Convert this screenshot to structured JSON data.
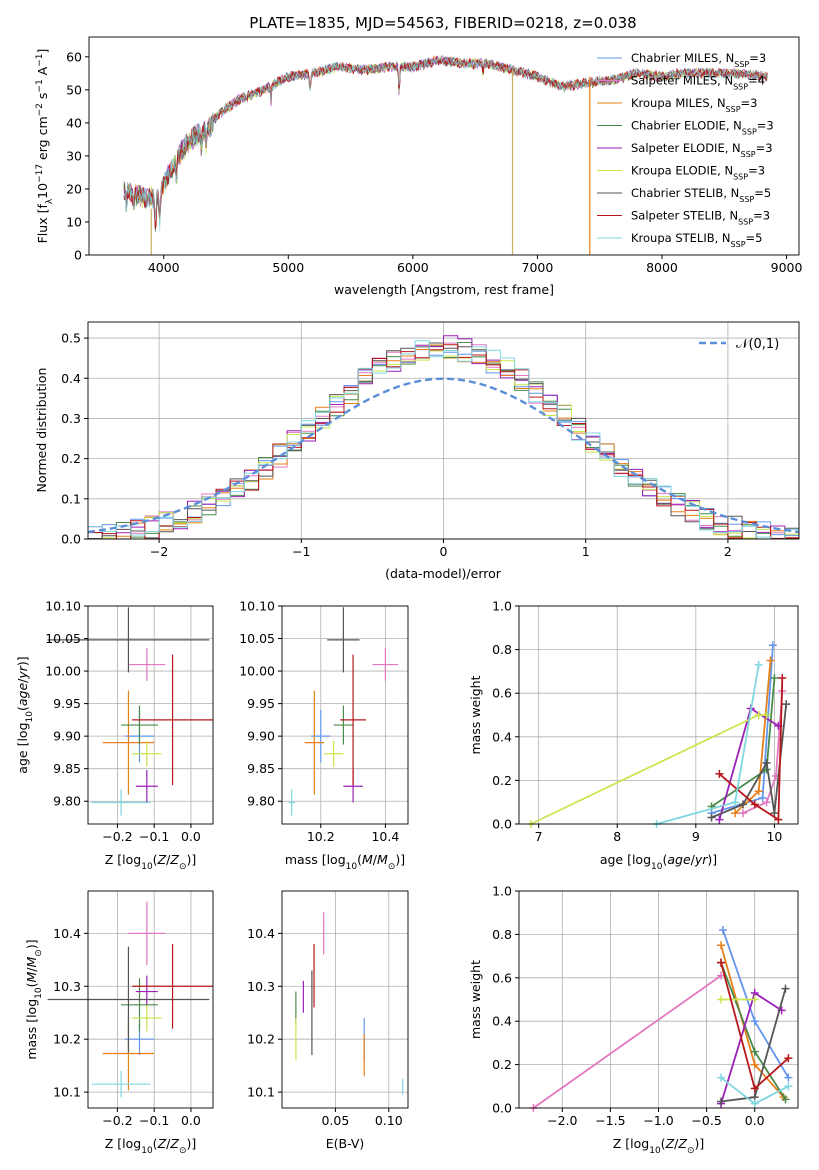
{
  "title": "PLATE=1835, MJD=54563, FIBERID=0218, z=0.038",
  "colors": {
    "Chabrier MILES": "#6495ed",
    "Salpeter MILES": "#e377c2",
    "Kroupa MILES": "#e6801a",
    "Chabrier ELODIE": "#4a8a4a",
    "Salpeter ELODIE": "#9b1fb8",
    "Kroupa ELODIE": "#c9e64f",
    "Chabrier STELIB": "#555555",
    "Salpeter STELIB": "#b8161b",
    "Kroupa STELIB": "#7fd6e0"
  },
  "chart_data": [
    {
      "type": "line",
      "panel": "spectrum",
      "xlabel": "wavelength [Angstrom, rest frame]",
      "ylabel": "Flux [f_λ10^-17 erg cm^-2 s^-1 A^-1]",
      "xlim": [
        3400,
        9100
      ],
      "ylim": [
        0,
        66
      ],
      "xticks": [
        4000,
        5000,
        6000,
        7000,
        8000,
        9000
      ],
      "yticks": [
        0,
        10,
        20,
        30,
        40,
        50,
        60
      ],
      "legend": "top-right",
      "continuum": {
        "x": [
          3680,
          3750,
          3850,
          3950,
          4050,
          4150,
          4250,
          4350,
          4450,
          4600,
          4800,
          5000,
          5200,
          5400,
          5600,
          5800,
          6000,
          6200,
          6400,
          6600,
          6800,
          7000,
          7200,
          7400,
          7600,
          7800,
          8000,
          8200,
          8400,
          8600,
          8850
        ],
        "y": [
          20,
          19,
          17,
          18,
          25,
          32,
          36,
          38,
          43,
          47,
          50,
          54,
          55,
          57,
          56,
          57,
          57,
          59,
          58,
          58,
          56,
          54,
          51,
          52,
          53,
          55,
          54,
          55,
          55,
          55,
          54
        ]
      },
      "series": [
        {
          "name": "Chabrier MILES",
          "nssp": 3
        },
        {
          "name": "Salpeter MILES",
          "nssp": 4
        },
        {
          "name": "Kroupa MILES",
          "nssp": 3
        },
        {
          "name": "Chabrier ELODIE",
          "nssp": 3
        },
        {
          "name": "Salpeter ELODIE",
          "nssp": 3
        },
        {
          "name": "Kroupa ELODIE",
          "nssp": 3
        },
        {
          "name": "Chabrier STELIB",
          "nssp": 5
        },
        {
          "name": "Salpeter STELIB",
          "nssp": 3
        },
        {
          "name": "Kroupa STELIB",
          "nssp": 5
        }
      ],
      "spikes": [
        {
          "x": 3900,
          "y": [
            0,
            14
          ],
          "color": "#c9b060"
        },
        {
          "x": 6800,
          "y": [
            0,
            56
          ],
          "color": "#c9b060"
        },
        {
          "x": 7420,
          "y": [
            0,
            54
          ],
          "color": "#e6801a"
        }
      ]
    },
    {
      "type": "line",
      "panel": "residual-histogram",
      "xlabel": "(data-model)/error",
      "ylabel": "Normed distribution",
      "xlim": [
        -2.5,
        2.5
      ],
      "ylim": [
        0,
        0.54
      ],
      "xticks": [
        -2,
        -1,
        0,
        1,
        2
      ],
      "yticks": [
        0.0,
        0.1,
        0.2,
        0.3,
        0.4,
        0.5
      ],
      "grid": true,
      "legend": "top-right",
      "reference_label": "𝒩(0,1)",
      "reference_color": "#5b8fd9",
      "bin_width": 0.1
    },
    {
      "type": "scatter",
      "panel": "age-vs-Z",
      "xlabel": "Z [log10(Z/Z⊙)]",
      "ylabel": "age [log10(age/yr)]",
      "xlim": [
        -0.28,
        0.06
      ],
      "ylim": [
        9.765,
        10.1
      ],
      "xticks": [
        -0.2,
        -0.1,
        0.0
      ],
      "yticks": [
        9.8,
        9.85,
        9.9,
        9.95,
        10.0,
        10.05,
        10.1
      ],
      "points": [
        {
          "name": "Chabrier MILES",
          "x": -0.14,
          "xerr": 0.04,
          "y": 9.9,
          "yerr": 0.04
        },
        {
          "name": "Salpeter MILES",
          "x": -0.12,
          "xerr": 0.05,
          "y": 10.01,
          "yerr": 0.025
        },
        {
          "name": "Kroupa MILES",
          "x": -0.17,
          "xerr": 0.07,
          "y": 9.89,
          "yerr": 0.08
        },
        {
          "name": "Chabrier ELODIE",
          "x": -0.14,
          "xerr": 0.05,
          "y": 9.917,
          "yerr": 0.03
        },
        {
          "name": "Salpeter ELODIE",
          "x": -0.12,
          "xerr": 0.03,
          "y": 9.823,
          "yerr": 0.025
        },
        {
          "name": "Kroupa ELODIE",
          "x": -0.12,
          "xerr": 0.04,
          "y": 9.873,
          "yerr": 0.02
        },
        {
          "name": "Chabrier STELIB",
          "x": -0.17,
          "xerr": 0.22,
          "y": 10.048,
          "yerr": 0.05
        },
        {
          "name": "Salpeter STELIB",
          "x": -0.05,
          "xerr": 0.11,
          "y": 9.925,
          "yerr": 0.1
        },
        {
          "name": "Kroupa STELIB",
          "x": -0.19,
          "xerr": 0.08,
          "y": 9.798,
          "yerr": 0.02
        }
      ]
    },
    {
      "type": "scatter",
      "panel": "age-vs-mass",
      "xlabel": "mass [log10(M/M⊙)]",
      "ylabel": "",
      "xlim": [
        10.08,
        10.47
      ],
      "ylim": [
        9.765,
        10.1
      ],
      "xticks": [
        10.2,
        10.4
      ],
      "yticks": [
        9.8,
        9.85,
        9.9,
        9.95,
        10.0,
        10.05,
        10.1
      ],
      "points": [
        {
          "name": "Chabrier MILES",
          "x": 10.2,
          "xerr": 0.03,
          "y": 9.9,
          "yerr": 0.04
        },
        {
          "name": "Salpeter MILES",
          "x": 10.4,
          "xerr": 0.04,
          "y": 10.01,
          "yerr": 0.025
        },
        {
          "name": "Kroupa MILES",
          "x": 10.18,
          "xerr": 0.03,
          "y": 9.89,
          "yerr": 0.08
        },
        {
          "name": "Chabrier ELODIE",
          "x": 10.27,
          "xerr": 0.03,
          "y": 9.917,
          "yerr": 0.03
        },
        {
          "name": "Salpeter ELODIE",
          "x": 10.3,
          "xerr": 0.03,
          "y": 9.823,
          "yerr": 0.025
        },
        {
          "name": "Kroupa ELODIE",
          "x": 10.24,
          "xerr": 0.03,
          "y": 9.873,
          "yerr": 0.02
        },
        {
          "name": "Chabrier STELIB",
          "x": 10.27,
          "xerr": 0.05,
          "y": 10.048,
          "yerr": 0.05
        },
        {
          "name": "Salpeter STELIB",
          "x": 10.3,
          "xerr": 0.04,
          "y": 9.925,
          "yerr": 0.1
        },
        {
          "name": "Kroupa STELIB",
          "x": 10.11,
          "xerr": 0.01,
          "y": 9.798,
          "yerr": 0.02
        }
      ]
    },
    {
      "type": "line",
      "panel": "mass-weight-vs-age",
      "xlabel": "age [log10(age/yr)]",
      "ylabel": "mass weight",
      "xlim": [
        6.75,
        10.3
      ],
      "ylim": [
        0,
        1.0
      ],
      "xticks": [
        7,
        8,
        9,
        10
      ],
      "yticks": [
        0.0,
        0.2,
        0.4,
        0.6,
        0.8,
        1.0
      ],
      "grid": true,
      "series": [
        {
          "name": "Chabrier MILES",
          "x": [
            9.2,
            9.85,
            9.98
          ],
          "y": [
            0.05,
            0.12,
            0.82
          ]
        },
        {
          "name": "Salpeter MILES",
          "x": [
            9.6,
            9.9,
            10.02,
            10.1
          ],
          "y": [
            0.05,
            0.1,
            0.22,
            0.61
          ]
        },
        {
          "name": "Kroupa MILES",
          "x": [
            9.5,
            9.8,
            9.95
          ],
          "y": [
            0.05,
            0.15,
            0.75
          ]
        },
        {
          "name": "Chabrier ELODIE",
          "x": [
            9.2,
            9.9,
            10.0
          ],
          "y": [
            0.08,
            0.25,
            0.67
          ]
        },
        {
          "name": "Salpeter ELODIE",
          "x": [
            9.3,
            9.7,
            10.05
          ],
          "y": [
            0.02,
            0.53,
            0.45
          ]
        },
        {
          "name": "Kroupa ELODIE",
          "x": [
            6.9,
            9.8,
            9.9
          ],
          "y": [
            0.0,
            0.5,
            0.5
          ]
        },
        {
          "name": "Chabrier STELIB",
          "x": [
            9.2,
            9.6,
            9.9,
            10.0,
            10.15
          ],
          "y": [
            0.03,
            0.09,
            0.28,
            0.05,
            0.55
          ]
        },
        {
          "name": "Salpeter STELIB",
          "x": [
            9.3,
            9.75,
            10.05,
            10.1
          ],
          "y": [
            0.23,
            0.09,
            0.02,
            0.67
          ]
        },
        {
          "name": "Kroupa STELIB",
          "x": [
            8.5,
            9.5,
            9.8
          ],
          "y": [
            0.0,
            0.1,
            0.73
          ]
        }
      ]
    },
    {
      "type": "scatter",
      "panel": "mass-vs-Z",
      "xlabel": "Z [log10(Z/Z⊙)]",
      "ylabel": "mass [log10(M/M⊙)]",
      "xlim": [
        -0.28,
        0.06
      ],
      "ylim": [
        10.07,
        10.48
      ],
      "xticks": [
        -0.2,
        -0.1,
        0.0
      ],
      "yticks": [
        10.1,
        10.2,
        10.3,
        10.4
      ],
      "points": [
        {
          "name": "Chabrier MILES",
          "x": -0.14,
          "xerr": 0.04,
          "y": 10.2,
          "yerr": 0.03
        },
        {
          "name": "Salpeter MILES",
          "x": -0.12,
          "xerr": 0.05,
          "y": 10.4,
          "yerr": 0.06
        },
        {
          "name": "Kroupa MILES",
          "x": -0.17,
          "xerr": 0.07,
          "y": 10.173,
          "yerr": 0.07
        },
        {
          "name": "Chabrier ELODIE",
          "x": -0.14,
          "xerr": 0.05,
          "y": 10.265,
          "yerr": 0.05
        },
        {
          "name": "Salpeter ELODIE",
          "x": -0.12,
          "xerr": 0.03,
          "y": 10.29,
          "yerr": 0.03
        },
        {
          "name": "Kroupa ELODIE",
          "x": -0.12,
          "xerr": 0.04,
          "y": 10.24,
          "yerr": 0.025
        },
        {
          "name": "Chabrier STELIB",
          "x": -0.17,
          "xerr": 0.22,
          "y": 10.275,
          "yerr": 0.1
        },
        {
          "name": "Salpeter STELIB",
          "x": -0.05,
          "xerr": 0.11,
          "y": 10.3,
          "yerr": 0.08
        },
        {
          "name": "Kroupa STELIB",
          "x": -0.19,
          "xerr": 0.08,
          "y": 10.115,
          "yerr": 0.025
        }
      ]
    },
    {
      "type": "scatter",
      "panel": "mass-vs-EBV",
      "xlabel": "E(B-V)",
      "ylabel": "",
      "xlim": [
        0.0,
        0.118
      ],
      "ylim": [
        10.07,
        10.48
      ],
      "xticks": [
        0.05,
        0.1
      ],
      "yticks": [
        10.1,
        10.2,
        10.3,
        10.4
      ],
      "points": [
        {
          "name": "Chabrier MILES",
          "x": 0.077,
          "y": 10.2,
          "yerr": 0.04
        },
        {
          "name": "Salpeter MILES",
          "x": 0.039,
          "y": 10.4,
          "yerr": 0.04
        },
        {
          "name": "Kroupa MILES",
          "x": 0.077,
          "y": 10.17,
          "yerr": 0.04
        },
        {
          "name": "Chabrier ELODIE",
          "x": 0.013,
          "y": 10.26,
          "yerr": 0.03
        },
        {
          "name": "Salpeter ELODIE",
          "x": 0.02,
          "y": 10.28,
          "yerr": 0.03
        },
        {
          "name": "Kroupa ELODIE",
          "x": 0.013,
          "y": 10.2,
          "yerr": 0.04
        },
        {
          "name": "Chabrier STELIB",
          "x": 0.028,
          "y": 10.25,
          "yerr": 0.08
        },
        {
          "name": "Salpeter STELIB",
          "x": 0.03,
          "y": 10.32,
          "yerr": 0.06
        },
        {
          "name": "Kroupa STELIB",
          "x": 0.113,
          "y": 10.11,
          "yerr": 0.015
        }
      ]
    },
    {
      "type": "line",
      "panel": "mass-weight-vs-Z",
      "xlabel": "Z [log10(Z/Z⊙)]",
      "ylabel": "mass weight",
      "xlim": [
        -2.45,
        0.45
      ],
      "ylim": [
        0,
        1.0
      ],
      "xticks": [
        -2.0,
        -1.5,
        -1.0,
        -0.5,
        0.0
      ],
      "yticks": [
        0.0,
        0.2,
        0.4,
        0.6,
        0.8,
        1.0
      ],
      "grid": true,
      "series": [
        {
          "name": "Chabrier MILES",
          "x": [
            -0.33,
            0.0,
            0.35
          ],
          "y": [
            0.82,
            0.4,
            0.14
          ]
        },
        {
          "name": "Salpeter MILES",
          "x": [
            -2.3,
            -0.35
          ],
          "y": [
            0.0,
            0.61
          ]
        },
        {
          "name": "Kroupa MILES",
          "x": [
            -0.35,
            0.0,
            0.3
          ],
          "y": [
            0.75,
            0.2,
            0.05
          ]
        },
        {
          "name": "Chabrier ELODIE",
          "x": [
            -0.35,
            0.0,
            0.32
          ],
          "y": [
            0.67,
            0.26,
            0.04
          ]
        },
        {
          "name": "Salpeter ELODIE",
          "x": [
            -0.35,
            0.0,
            0.28
          ],
          "y": [
            0.02,
            0.53,
            0.45
          ]
        },
        {
          "name": "Kroupa ELODIE",
          "x": [
            -0.35,
            0.0
          ],
          "y": [
            0.5,
            0.5
          ]
        },
        {
          "name": "Chabrier STELIB",
          "x": [
            -0.35,
            0.0,
            0.32
          ],
          "y": [
            0.03,
            0.05,
            0.55
          ]
        },
        {
          "name": "Salpeter STELIB",
          "x": [
            -0.35,
            0.0,
            0.35
          ],
          "y": [
            0.67,
            0.09,
            0.23
          ]
        },
        {
          "name": "Kroupa STELIB",
          "x": [
            -0.35,
            0.0,
            0.35
          ],
          "y": [
            0.14,
            0.02,
            0.1
          ]
        }
      ]
    }
  ]
}
